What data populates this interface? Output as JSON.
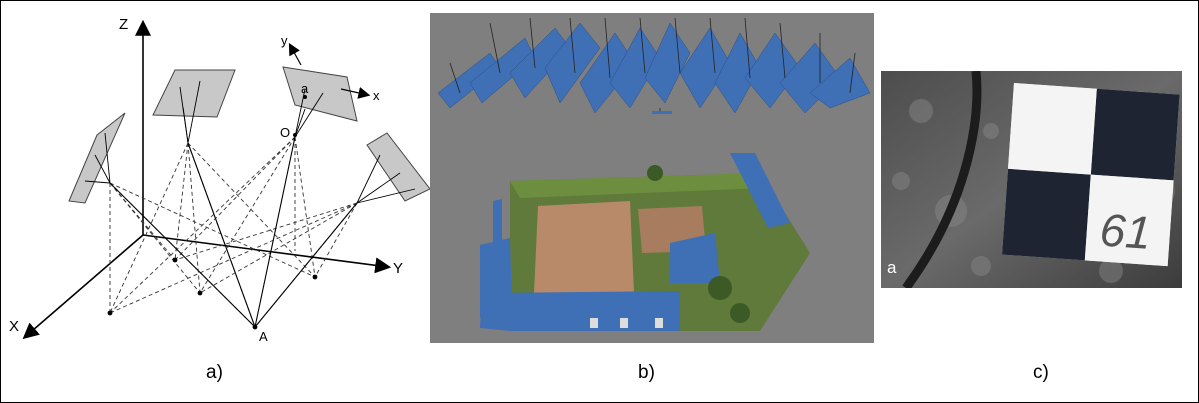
{
  "panel_a": {
    "caption": "a)",
    "axis_z": "Z",
    "axis_y": "Y",
    "axis_x": "X",
    "local_y": "y",
    "local_x": "x",
    "image_point": "a",
    "projection_center": "O",
    "ground_point": "A"
  },
  "panel_b": {
    "caption": "b)"
  },
  "panel_c": {
    "caption": "c)",
    "label": "a",
    "target_number": "61"
  }
}
